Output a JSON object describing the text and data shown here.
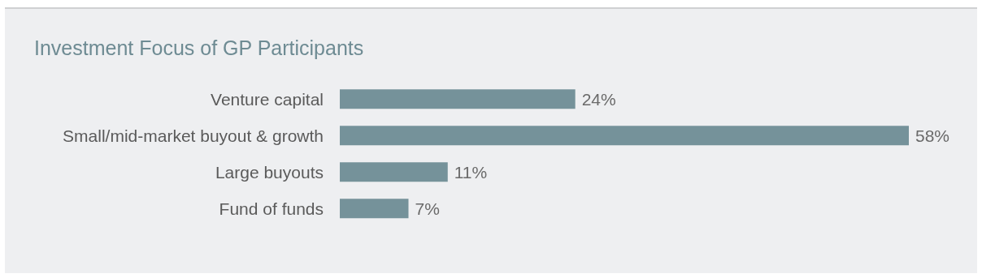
{
  "chart_data": {
    "type": "bar",
    "orientation": "horizontal",
    "title": "Investment Focus of GP Participants",
    "categories": [
      "Venture capital",
      "Small/mid-market buyout & growth",
      "Large buyouts",
      "Fund of funds"
    ],
    "values": [
      24,
      58,
      11,
      7
    ],
    "value_labels": [
      "24%",
      "58%",
      "11%",
      "7%"
    ],
    "color": "#75929a"
  }
}
